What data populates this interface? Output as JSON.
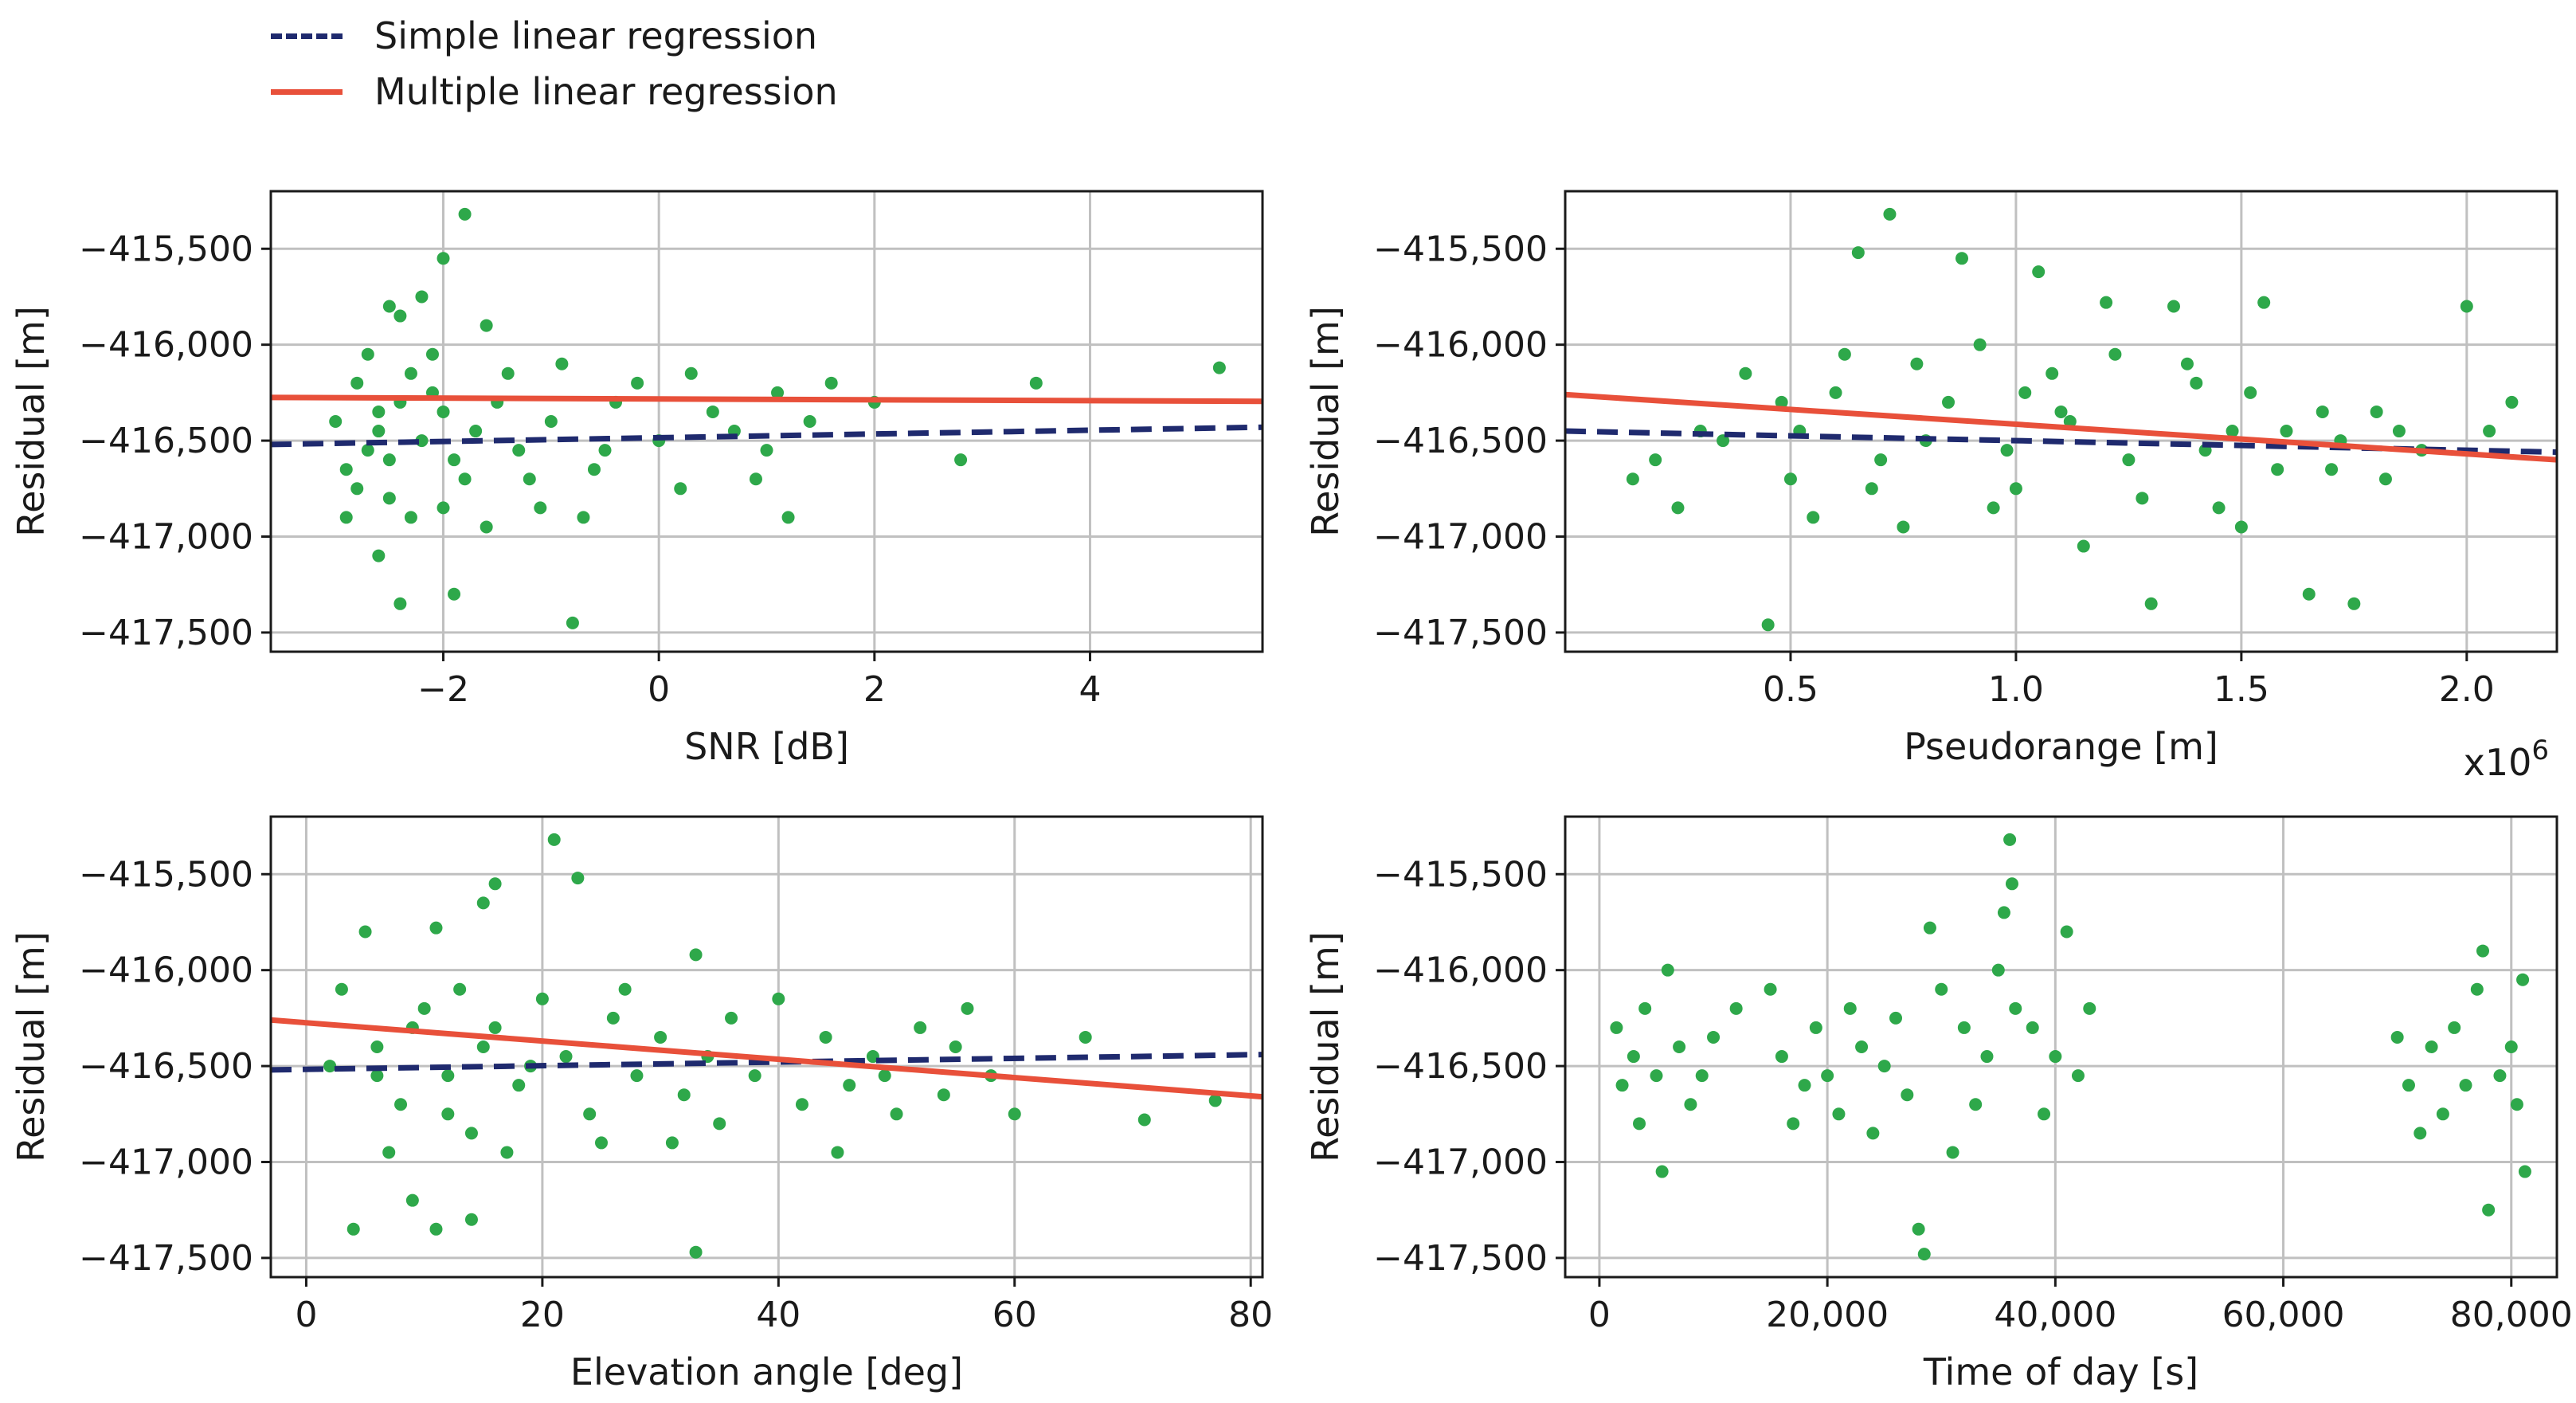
{
  "legend": {
    "simple_label": "Simple linear regression",
    "multiple_label": "Multiple linear regression"
  },
  "colors": {
    "points": "#2ea84a",
    "simple": "#1f2a6e",
    "multiple": "#e8503a",
    "grid": "#c0c0c0",
    "axis": "#1a1a1a"
  },
  "chart_data": [
    {
      "type": "scatter",
      "id": "snr",
      "xlabel": "SNR [dB]",
      "ylabel": "Residual [m]",
      "xlim": [
        -3.6,
        5.6
      ],
      "ylim": [
        -417600,
        -415200
      ],
      "xticks": [
        -2,
        0,
        2,
        4
      ],
      "xtick_labels": [
        "−2",
        "0",
        "2",
        "4"
      ],
      "yticks": [
        -417500,
        -417000,
        -416500,
        -416000,
        -415500
      ],
      "ytick_labels": [
        "−417,500",
        "−417,000",
        "−416,500",
        "−416,000",
        "−415,500"
      ],
      "x_multiplier": "",
      "simple_fit": {
        "x": [
          -3.6,
          5.6
        ],
        "y": [
          -416520,
          -416430
        ]
      },
      "multiple_fit": {
        "x": [
          -3.6,
          5.6
        ],
        "y": [
          -416275,
          -416295
        ]
      },
      "points": [
        [
          -2.8,
          -416200
        ],
        [
          -2.6,
          -416450
        ],
        [
          -2.9,
          -416650
        ],
        [
          -2.4,
          -416300
        ],
        [
          -2.2,
          -416500
        ],
        [
          -2.5,
          -416800
        ],
        [
          -2.7,
          -416050
        ],
        [
          -2.3,
          -416900
        ],
        [
          -2.1,
          -416250
        ],
        [
          -1.9,
          -416600
        ],
        [
          -2.0,
          -416350
        ],
        [
          -1.8,
          -416700
        ],
        [
          -2.6,
          -417100
        ],
        [
          -2.5,
          -415800
        ],
        [
          -2.0,
          -415550
        ],
        [
          -1.8,
          -415320
        ],
        [
          -1.6,
          -415900
        ],
        [
          -1.4,
          -416150
        ],
        [
          -1.3,
          -416550
        ],
        [
          -1.1,
          -416850
        ],
        [
          -1.0,
          -416400
        ],
        [
          -0.9,
          -416100
        ],
        [
          -0.8,
          -417450
        ],
        [
          -0.6,
          -416650
        ],
        [
          -0.4,
          -416300
        ],
        [
          -0.2,
          -416200
        ],
        [
          0.0,
          -416500
        ],
        [
          0.2,
          -416750
        ],
        [
          0.5,
          -416350
        ],
        [
          0.7,
          -416450
        ],
        [
          0.9,
          -416700
        ],
        [
          1.1,
          -416250
        ],
        [
          1.2,
          -416900
        ],
        [
          1.6,
          -416200
        ],
        [
          2.0,
          -416300
        ],
        [
          2.8,
          -416600
        ],
        [
          3.5,
          -416200
        ],
        [
          5.2,
          -416120
        ],
        [
          -2.4,
          -417350
        ],
        [
          -1.9,
          -417300
        ],
        [
          -2.9,
          -416900
        ],
        [
          -3.0,
          -416400
        ],
        [
          -2.7,
          -416550
        ],
        [
          -2.3,
          -416150
        ],
        [
          -2.1,
          -416050
        ],
        [
          -1.7,
          -416450
        ],
        [
          -1.5,
          -416300
        ],
        [
          -2.2,
          -415750
        ],
        [
          -2.4,
          -415850
        ],
        [
          -1.2,
          -416700
        ],
        [
          -0.7,
          -416900
        ],
        [
          -0.5,
          -416550
        ],
        [
          0.3,
          -416150
        ],
        [
          1.0,
          -416550
        ],
        [
          1.4,
          -416400
        ],
        [
          -2.8,
          -416750
        ],
        [
          -2.6,
          -416350
        ],
        [
          -2.0,
          -416850
        ],
        [
          -1.6,
          -416950
        ],
        [
          -2.5,
          -416600
        ]
      ]
    },
    {
      "type": "scatter",
      "id": "pseudorange",
      "xlabel": "Pseudorange [m]",
      "ylabel": "Residual [m]",
      "xlim": [
        0.0,
        2.2
      ],
      "ylim": [
        -417600,
        -415200
      ],
      "xticks": [
        0.5,
        1.0,
        1.5,
        2.0
      ],
      "xtick_labels": [
        "0.5",
        "1.0",
        "1.5",
        "2.0"
      ],
      "yticks": [
        -417500,
        -417000,
        -416500,
        -416000,
        -415500
      ],
      "ytick_labels": [
        "−417,500",
        "−417,000",
        "−416,500",
        "−416,000",
        "−415,500"
      ],
      "x_multiplier": "x10",
      "x_multiplier_exp": "6",
      "simple_fit": {
        "x": [
          0.0,
          2.2
        ],
        "y": [
          -416450,
          -416560
        ]
      },
      "multiple_fit": {
        "x": [
          0.0,
          2.2
        ],
        "y": [
          -416260,
          -416600
        ]
      },
      "points": [
        [
          0.72,
          -415320
        ],
        [
          0.65,
          -415520
        ],
        [
          0.88,
          -415550
        ],
        [
          1.05,
          -415620
        ],
        [
          1.35,
          -415800
        ],
        [
          2.0,
          -415800
        ],
        [
          1.55,
          -415780
        ],
        [
          1.2,
          -415780
        ],
        [
          0.45,
          -417460
        ],
        [
          0.3,
          -416450
        ],
        [
          0.5,
          -416700
        ],
        [
          0.6,
          -416250
        ],
        [
          0.8,
          -416500
        ],
        [
          0.95,
          -416850
        ],
        [
          1.1,
          -416350
        ],
        [
          1.25,
          -416600
        ],
        [
          1.4,
          -416200
        ],
        [
          1.5,
          -416950
        ],
        [
          1.6,
          -416450
        ],
        [
          1.7,
          -416650
        ],
        [
          1.8,
          -416350
        ],
        [
          1.9,
          -416550
        ],
        [
          0.4,
          -416150
        ],
        [
          0.55,
          -416900
        ],
        [
          0.7,
          -416600
        ],
        [
          0.85,
          -416300
        ],
        [
          1.0,
          -416750
        ],
        [
          1.15,
          -417050
        ],
        [
          1.3,
          -417350
        ],
        [
          1.45,
          -416850
        ],
        [
          1.65,
          -417300
        ],
        [
          1.75,
          -417350
        ],
        [
          1.85,
          -416450
        ],
        [
          2.05,
          -416450
        ],
        [
          2.1,
          -416300
        ],
        [
          0.2,
          -416600
        ],
        [
          0.25,
          -416850
        ],
        [
          0.35,
          -416500
        ],
        [
          0.62,
          -416050
        ],
        [
          0.78,
          -416100
        ],
        [
          0.92,
          -416000
        ],
        [
          1.08,
          -416150
        ],
        [
          1.22,
          -416050
        ],
        [
          1.38,
          -416100
        ],
        [
          1.52,
          -416250
        ],
        [
          1.68,
          -416350
        ],
        [
          1.82,
          -416700
        ],
        [
          0.98,
          -416550
        ],
        [
          1.12,
          -416400
        ],
        [
          1.28,
          -416800
        ],
        [
          0.48,
          -416300
        ],
        [
          0.68,
          -416750
        ],
        [
          1.42,
          -416550
        ],
        [
          1.58,
          -416650
        ],
        [
          1.72,
          -416500
        ],
        [
          0.15,
          -416700
        ],
        [
          0.52,
          -416450
        ],
        [
          0.75,
          -416950
        ],
        [
          1.02,
          -416250
        ],
        [
          1.48,
          -416450
        ]
      ]
    },
    {
      "type": "scatter",
      "id": "elevation",
      "xlabel": "Elevation angle [deg]",
      "ylabel": "Residual [m]",
      "xlim": [
        -3,
        81
      ],
      "ylim": [
        -417600,
        -415200
      ],
      "xticks": [
        0,
        20,
        40,
        60,
        80
      ],
      "xtick_labels": [
        "0",
        "20",
        "40",
        "60",
        "80"
      ],
      "yticks": [
        -417500,
        -417000,
        -416500,
        -416000,
        -415500
      ],
      "ytick_labels": [
        "−417,500",
        "−417,000",
        "−416,500",
        "−416,000",
        "−415,500"
      ],
      "x_multiplier": "",
      "simple_fit": {
        "x": [
          -3,
          81
        ],
        "y": [
          -416520,
          -416440
        ]
      },
      "multiple_fit": {
        "x": [
          -3,
          81
        ],
        "y": [
          -416260,
          -416660
        ]
      },
      "points": [
        [
          21,
          -415320
        ],
        [
          23,
          -415520
        ],
        [
          16,
          -415550
        ],
        [
          15,
          -415650
        ],
        [
          11,
          -415780
        ],
        [
          33,
          -415920
        ],
        [
          5,
          -415800
        ],
        [
          3,
          -416100
        ],
        [
          6,
          -416400
        ],
        [
          8,
          -416700
        ],
        [
          10,
          -416200
        ],
        [
          12,
          -416550
        ],
        [
          14,
          -416850
        ],
        [
          16,
          -416300
        ],
        [
          18,
          -416600
        ],
        [
          20,
          -416150
        ],
        [
          22,
          -416450
        ],
        [
          24,
          -416750
        ],
        [
          26,
          -416250
        ],
        [
          28,
          -416550
        ],
        [
          30,
          -416350
        ],
        [
          32,
          -416650
        ],
        [
          34,
          -416450
        ],
        [
          36,
          -416250
        ],
        [
          38,
          -416550
        ],
        [
          40,
          -416150
        ],
        [
          42,
          -416700
        ],
        [
          44,
          -416350
        ],
        [
          46,
          -416600
        ],
        [
          48,
          -416450
        ],
        [
          50,
          -416750
        ],
        [
          52,
          -416300
        ],
        [
          54,
          -416650
        ],
        [
          56,
          -416200
        ],
        [
          58,
          -416550
        ],
        [
          60,
          -416750
        ],
        [
          66,
          -416350
        ],
        [
          71,
          -416780
        ],
        [
          77,
          -416680
        ],
        [
          4,
          -417350
        ],
        [
          9,
          -417200
        ],
        [
          11,
          -417350
        ],
        [
          14,
          -417300
        ],
        [
          33,
          -417470
        ],
        [
          2,
          -416500
        ],
        [
          7,
          -416950
        ],
        [
          13,
          -416100
        ],
        [
          17,
          -416950
        ],
        [
          25,
          -416900
        ],
        [
          35,
          -416800
        ],
        [
          45,
          -416950
        ],
        [
          49,
          -416550
        ],
        [
          55,
          -416400
        ],
        [
          6,
          -416550
        ],
        [
          9,
          -416300
        ],
        [
          12,
          -416750
        ],
        [
          15,
          -416400
        ],
        [
          19,
          -416500
        ],
        [
          27,
          -416100
        ],
        [
          31,
          -416900
        ]
      ]
    },
    {
      "type": "scatter",
      "id": "time",
      "xlabel": "Time of day [s]",
      "ylabel": "Residual [m]",
      "xlim": [
        -3000,
        84000
      ],
      "ylim": [
        -417600,
        -415200
      ],
      "xticks": [
        0,
        20000,
        40000,
        60000,
        80000
      ],
      "xtick_labels": [
        "0",
        "20,000",
        "40,000",
        "60,000",
        "80,000"
      ],
      "yticks": [
        -417500,
        -417000,
        -416500,
        -416000,
        -415500
      ],
      "ytick_labels": [
        "−417,500",
        "−417,000",
        "−416,500",
        "−416,000",
        "−415,500"
      ],
      "x_multiplier": "",
      "simple_fit": null,
      "multiple_fit": null,
      "points": [
        [
          1500,
          -416300
        ],
        [
          2000,
          -416600
        ],
        [
          3000,
          -416450
        ],
        [
          3500,
          -416800
        ],
        [
          4000,
          -416200
        ],
        [
          5000,
          -416550
        ],
        [
          5500,
          -417050
        ],
        [
          6000,
          -416000
        ],
        [
          7000,
          -416400
        ],
        [
          8000,
          -416700
        ],
        [
          9000,
          -416550
        ],
        [
          10000,
          -416350
        ],
        [
          12000,
          -416200
        ],
        [
          15000,
          -416100
        ],
        [
          16000,
          -416450
        ],
        [
          17000,
          -416800
        ],
        [
          18000,
          -416600
        ],
        [
          19000,
          -416300
        ],
        [
          20000,
          -416550
        ],
        [
          21000,
          -416750
        ],
        [
          22000,
          -416200
        ],
        [
          23000,
          -416400
        ],
        [
          24000,
          -416850
        ],
        [
          25000,
          -416500
        ],
        [
          26000,
          -416250
        ],
        [
          27000,
          -416650
        ],
        [
          28000,
          -417350
        ],
        [
          28500,
          -417480
        ],
        [
          29000,
          -415780
        ],
        [
          30000,
          -416100
        ],
        [
          31000,
          -416950
        ],
        [
          32000,
          -416300
        ],
        [
          33000,
          -416700
        ],
        [
          34000,
          -416450
        ],
        [
          35000,
          -416000
        ],
        [
          35500,
          -415700
        ],
        [
          36000,
          -415320
        ],
        [
          36200,
          -415550
        ],
        [
          36500,
          -416200
        ],
        [
          38000,
          -416300
        ],
        [
          39000,
          -416750
        ],
        [
          40000,
          -416450
        ],
        [
          41000,
          -415800
        ],
        [
          42000,
          -416550
        ],
        [
          43000,
          -416200
        ],
        [
          70000,
          -416350
        ],
        [
          71000,
          -416600
        ],
        [
          72000,
          -416850
        ],
        [
          73000,
          -416400
        ],
        [
          74000,
          -416750
        ],
        [
          75000,
          -416300
        ],
        [
          76000,
          -416600
        ],
        [
          77000,
          -416100
        ],
        [
          77500,
          -415900
        ],
        [
          78000,
          -417250
        ],
        [
          79000,
          -416550
        ],
        [
          80000,
          -416400
        ],
        [
          81000,
          -416050
        ],
        [
          81200,
          -417050
        ],
        [
          80500,
          -416700
        ]
      ]
    }
  ]
}
